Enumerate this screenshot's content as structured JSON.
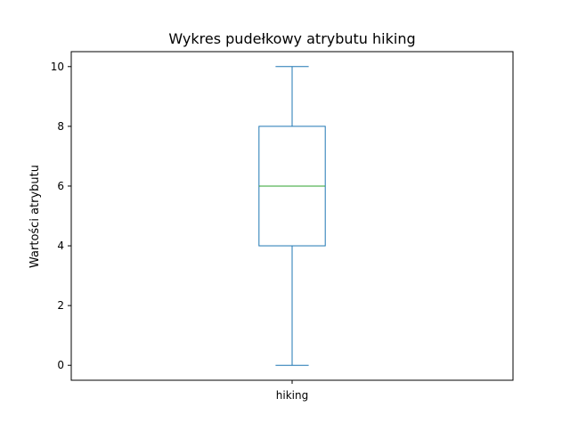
{
  "chart_data": {
    "type": "box",
    "title": "Wykres pudełkowy atrybutu hiking",
    "xlabel": "",
    "ylabel": "Wartości atrybutu",
    "categories": [
      "hiking"
    ],
    "boxes": [
      {
        "category": "hiking",
        "whisker_low": 0,
        "q1": 4,
        "median": 6,
        "q3": 8,
        "whisker_high": 10
      }
    ],
    "ylim": [
      -0.5,
      10.5
    ],
    "yticks": [
      0,
      2,
      4,
      6,
      8,
      10
    ],
    "grid": false,
    "colors": {
      "box": "#1f77b4",
      "median": "#2ca02c",
      "axes": "#000000"
    }
  }
}
